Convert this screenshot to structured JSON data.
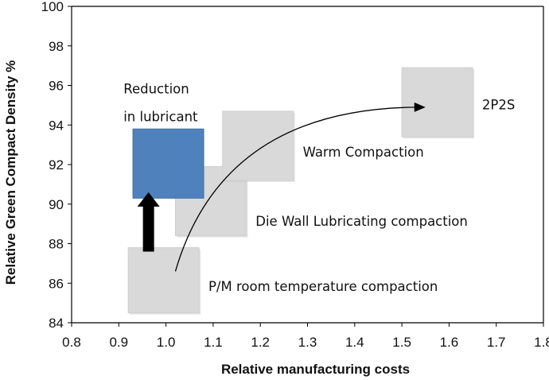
{
  "chart_data": {
    "type": "scatter",
    "title": "",
    "xlabel": "Relative manufacturing costs",
    "ylabel": "Relative Green Compact Density  %",
    "xlim": [
      0.8,
      1.8
    ],
    "ylim": [
      84,
      100
    ],
    "x_ticks": [
      0.8,
      0.9,
      1.0,
      1.1,
      1.2,
      1.3,
      1.4,
      1.5,
      1.6,
      1.7,
      1.8
    ],
    "y_ticks": [
      84,
      86,
      88,
      90,
      92,
      94,
      96,
      98,
      100
    ],
    "grid": false,
    "legend": "none",
    "regions": [
      {
        "label": "P/M room temperature compaction",
        "x": [
          0.92,
          1.07
        ],
        "y": [
          84.5,
          87.8
        ],
        "color": "#d9d9d9"
      },
      {
        "label": "Die Wall Lubricating compaction",
        "x": [
          1.02,
          1.17
        ],
        "y": [
          88.4,
          91.9
        ],
        "color": "#d9d9d9"
      },
      {
        "label": "Warm Compaction",
        "x": [
          1.12,
          1.27
        ],
        "y": [
          91.2,
          94.7
        ],
        "color": "#d9d9d9"
      },
      {
        "label": "2P2S",
        "x": [
          1.5,
          1.65
        ],
        "y": [
          93.4,
          96.9
        ],
        "color": "#d9d9d9"
      },
      {
        "label": "",
        "x": [
          0.93,
          1.08
        ],
        "y": [
          90.3,
          93.8
        ],
        "color": "#4f81bd"
      }
    ],
    "annotations": [
      {
        "text": "Reduction",
        "x": 0.91,
        "y": 95.6
      },
      {
        "text": "in lubricant",
        "x": 0.91,
        "y": 94.2
      },
      {
        "text": "Warm Compaction",
        "x": 1.29,
        "y": 92.4
      },
      {
        "text": "Die Wall Lubricating compaction",
        "x": 1.19,
        "y": 88.9
      },
      {
        "text": "P/M room temperature compaction",
        "x": 1.09,
        "y": 85.6
      },
      {
        "text": "2P2S",
        "x": 1.67,
        "y": 94.8
      }
    ],
    "arrows": [
      {
        "kind": "block",
        "x": 0.963,
        "from_y": 87.6,
        "to_y": 90.6,
        "color": "#000000"
      },
      {
        "kind": "curve",
        "from": [
          1.02,
          86.6
        ],
        "control": [
          1.12,
          94.8
        ],
        "to": [
          1.55,
          94.9
        ],
        "color": "#000000"
      }
    ]
  }
}
